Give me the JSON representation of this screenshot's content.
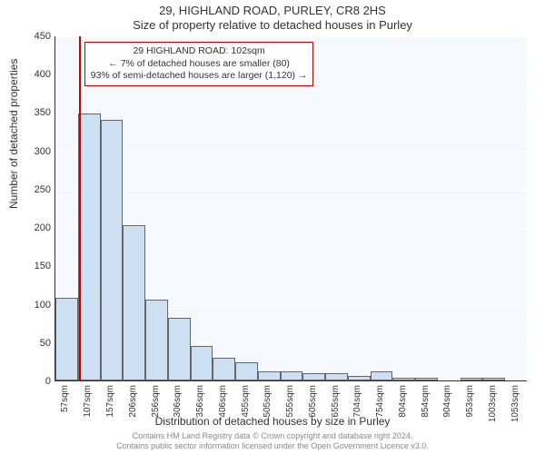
{
  "title_line_1": "29, HIGHLAND ROAD, PURLEY, CR8 2HS",
  "title_line_2": "Size of property relative to detached houses in Purley",
  "y_axis_label": "Number of detached properties",
  "x_axis_label": "Distribution of detached houses by size in Purley",
  "footer_line_1": "Contains HM Land Registry data © Crown copyright and database right 2024.",
  "footer_line_2": "Contains public sector information licensed under the Open Government Licence v3.0.",
  "chart": {
    "type": "histogram",
    "ylim": [
      0,
      450
    ],
    "ytick_step": 50,
    "background_color": "#f5f8fc",
    "grid_color": "#ffffff",
    "bar_fill_color": "#cddff2",
    "bar_border_color": "#666666",
    "marker_color": "#cc0000",
    "marker_value_sqm": 102,
    "x_start_sqm": 50,
    "x_bin_width_sqm": 50,
    "x_tick_start_sqm": 57,
    "x_tick_step_sqm": 50,
    "bars": [
      {
        "label": "57sqm",
        "value": 108
      },
      {
        "label": "107sqm",
        "value": 348
      },
      {
        "label": "157sqm",
        "value": 340
      },
      {
        "label": "206sqm",
        "value": 202
      },
      {
        "label": "256sqm",
        "value": 105
      },
      {
        "label": "306sqm",
        "value": 82
      },
      {
        "label": "356sqm",
        "value": 45
      },
      {
        "label": "406sqm",
        "value": 30
      },
      {
        "label": "455sqm",
        "value": 24
      },
      {
        "label": "505sqm",
        "value": 12
      },
      {
        "label": "555sqm",
        "value": 12
      },
      {
        "label": "605sqm",
        "value": 10
      },
      {
        "label": "655sqm",
        "value": 10
      },
      {
        "label": "704sqm",
        "value": 6
      },
      {
        "label": "754sqm",
        "value": 12
      },
      {
        "label": "804sqm",
        "value": 4
      },
      {
        "label": "854sqm",
        "value": 4
      },
      {
        "label": "904sqm",
        "value": 0
      },
      {
        "label": "953sqm",
        "value": 4
      },
      {
        "label": "1003sqm",
        "value": 4
      },
      {
        "label": "1053sqm",
        "value": 0
      }
    ]
  },
  "info_box": {
    "line_1": "29 HIGHLAND ROAD: 102sqm",
    "line_2": "← 7% of detached houses are smaller (80)",
    "line_3": "93% of semi-detached houses are larger (1,120) →"
  }
}
